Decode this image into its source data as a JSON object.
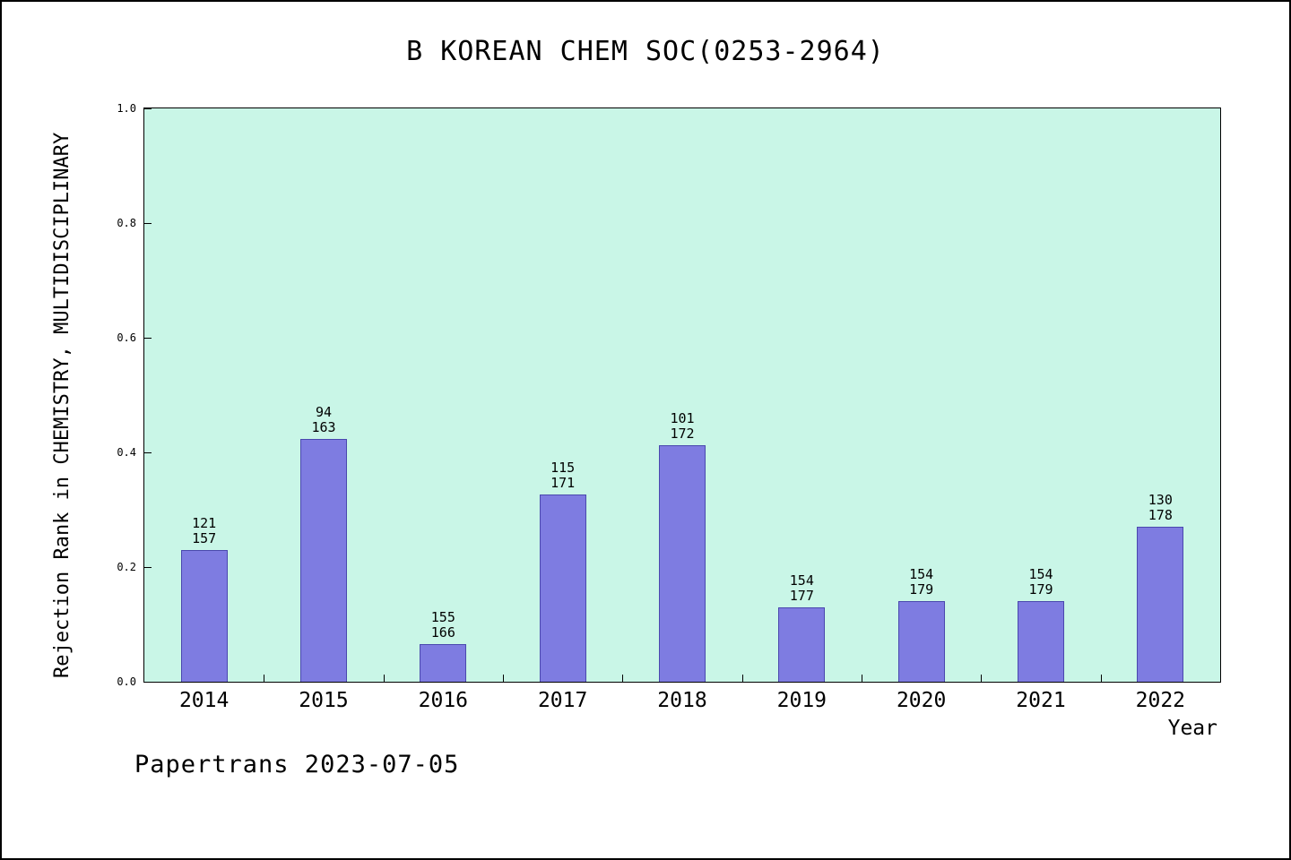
{
  "chart_data": {
    "type": "bar",
    "title": "B KOREAN CHEM SOC(0253-2964)",
    "xlabel": "Year",
    "ylabel": "Rejection Rank in CHEMISTRY, MULTIDISCIPLINARY",
    "ylim": [
      0.0,
      1.0
    ],
    "yticks": [
      0.0,
      0.2,
      0.4,
      0.6,
      0.8,
      1.0
    ],
    "categories": [
      "2014",
      "2015",
      "2016",
      "2017",
      "2018",
      "2019",
      "2020",
      "2021",
      "2022"
    ],
    "values": [
      0.229,
      0.423,
      0.066,
      0.327,
      0.413,
      0.13,
      0.14,
      0.14,
      0.27
    ],
    "bar_labels": [
      [
        "121",
        "157"
      ],
      [
        "94",
        "163"
      ],
      [
        "155",
        "166"
      ],
      [
        "115",
        "171"
      ],
      [
        "101",
        "172"
      ],
      [
        "154",
        "177"
      ],
      [
        "154",
        "179"
      ],
      [
        "154",
        "179"
      ],
      [
        "130",
        "178"
      ]
    ],
    "annotation": "Papertrans 2023-07-05",
    "grid": false,
    "legend": "none",
    "bar_color": "#7e7ce1",
    "plot_bg": "#c9f6e7"
  }
}
